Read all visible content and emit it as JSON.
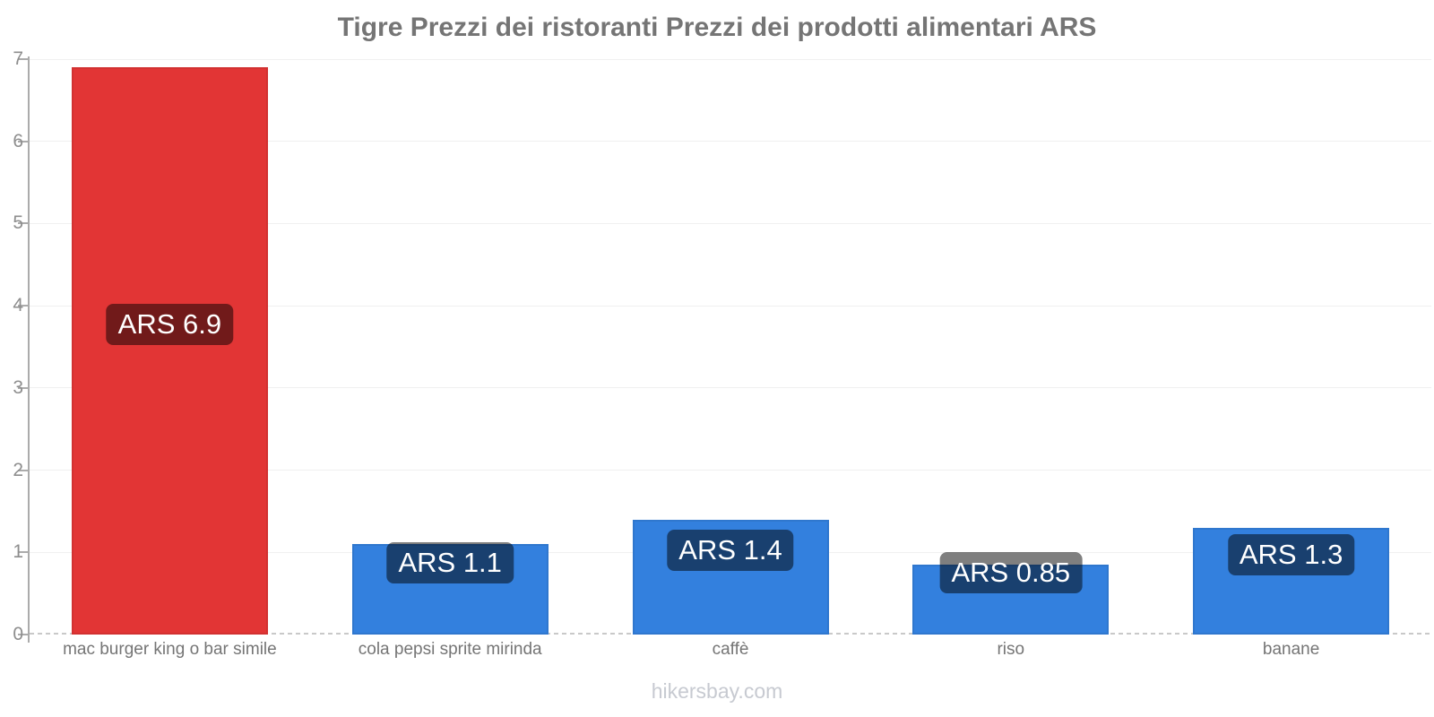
{
  "page": {
    "footer": "hikersbay.com"
  },
  "chart_data": {
    "type": "bar",
    "title": "Tigre Prezzi dei ristoranti Prezzi dei prodotti alimentari ARS",
    "categories": [
      "mac burger king o bar simile",
      "cola pepsi sprite mirinda",
      "caffè",
      "riso",
      "banane"
    ],
    "values": [
      6.9,
      1.1,
      1.4,
      0.85,
      1.3
    ],
    "bar_labels": [
      "ARS 6.9",
      "ARS 1.1",
      "ARS 1.4",
      "ARS 0.85",
      "ARS 1.3"
    ],
    "bar_colors": [
      "#e23535",
      "#3380de",
      "#3380de",
      "#3380de",
      "#3380de"
    ],
    "currency": "ARS",
    "xlabel": "",
    "ylabel": "",
    "ylim": [
      0,
      7
    ],
    "yticks": [
      0,
      1,
      2,
      3,
      4,
      5,
      6,
      7
    ],
    "grid": true,
    "legend": "none",
    "label_text_color": "#ffffff",
    "label_bg": "rgba(0,0,0,0.5)",
    "axis_color": "#ababab",
    "tick_label_color": "#8e8e8e",
    "title_color": "#757575"
  }
}
